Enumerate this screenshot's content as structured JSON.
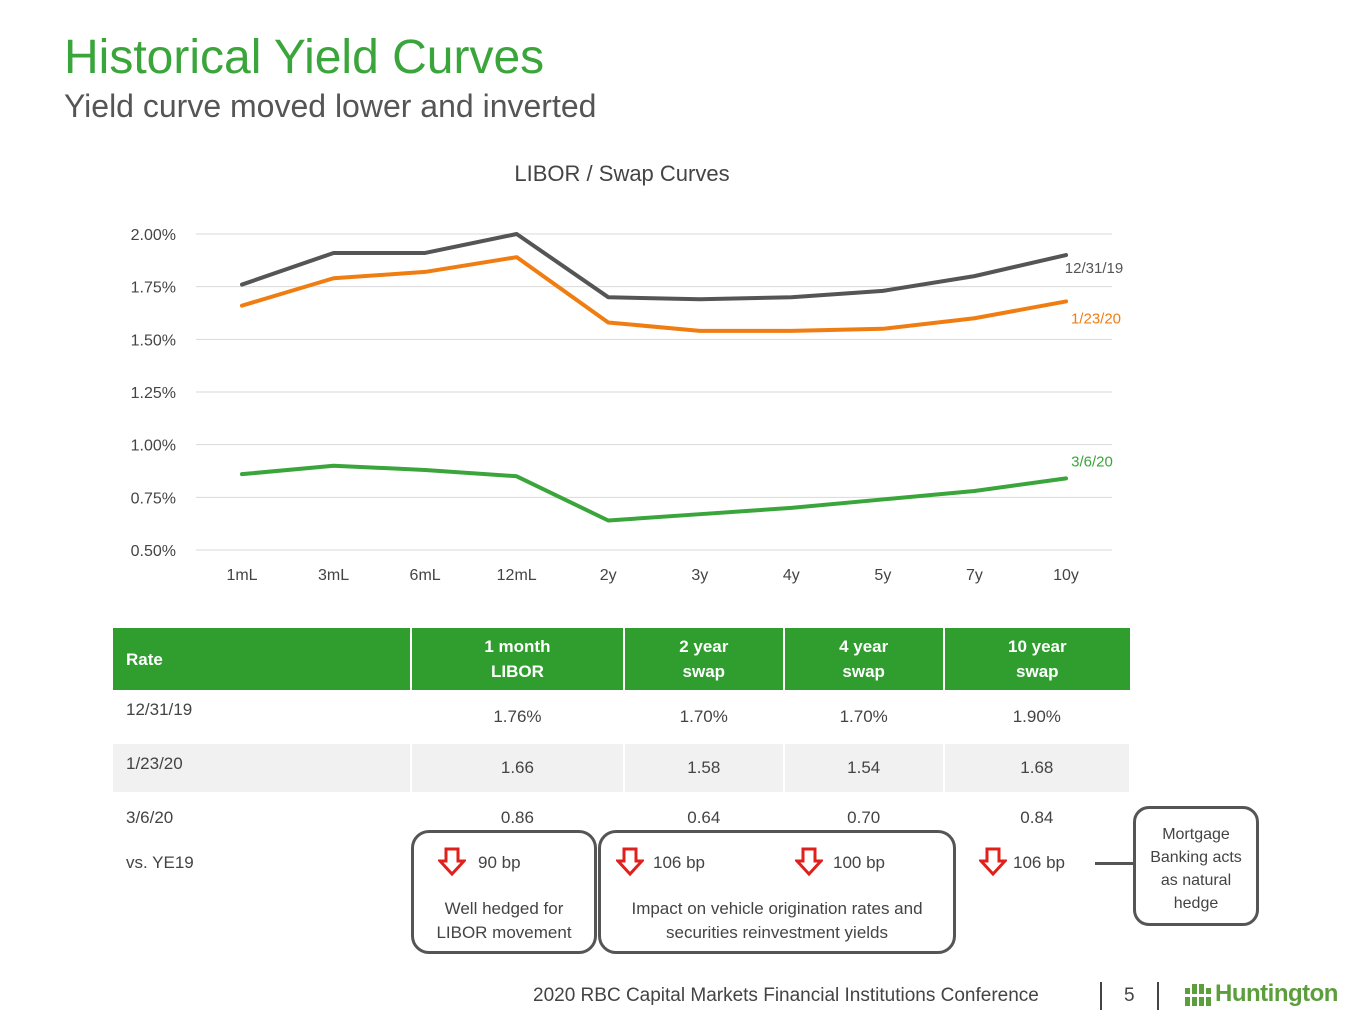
{
  "slide": {
    "title": "Historical Yield Curves",
    "subtitle": "Yield curve moved lower and inverted"
  },
  "chart_data": {
    "type": "line",
    "title": "LIBOR / Swap Curves",
    "categories": [
      "1mL",
      "3mL",
      "6mL",
      "12mL",
      "2y",
      "3y",
      "4y",
      "5y",
      "7y",
      "10y"
    ],
    "series": [
      {
        "name": "12/31/19",
        "color": "#555555",
        "values": [
          1.76,
          1.91,
          1.91,
          2.0,
          1.7,
          1.69,
          1.7,
          1.73,
          1.8,
          1.9
        ]
      },
      {
        "name": "1/23/20",
        "color": "#f07d12",
        "values": [
          1.66,
          1.79,
          1.82,
          1.89,
          1.58,
          1.54,
          1.54,
          1.55,
          1.6,
          1.68
        ]
      },
      {
        "name": "3/6/20",
        "color": "#3aa53a",
        "values": [
          0.86,
          0.9,
          0.88,
          0.85,
          0.64,
          0.67,
          0.7,
          0.74,
          0.78,
          0.84
        ]
      }
    ],
    "ylim": [
      0.5,
      2.0
    ],
    "yticks": [
      "2.00%",
      "1.75%",
      "1.50%",
      "1.25%",
      "1.00%",
      "0.75%",
      "0.50%"
    ],
    "ytick_values": [
      2.0,
      1.75,
      1.5,
      1.25,
      1.0,
      0.75,
      0.5
    ],
    "grid": true,
    "legend": "inline labels at right end of each line"
  },
  "table": {
    "header": {
      "rate": "Rate",
      "c1a": "1 month",
      "c1b": "LIBOR",
      "c2a": "2 year",
      "c2b": "swap",
      "c3a": "4 year",
      "c3b": "swap",
      "c4a": "10 year",
      "c4b": "swap"
    },
    "rows": [
      {
        "label": "12/31/19",
        "v1": "1.76%",
        "v2": "1.70%",
        "v3": "1.70%",
        "v4": "1.90%"
      },
      {
        "label": "1/23/20",
        "v1": "1.66",
        "v2": "1.58",
        "v3": "1.54",
        "v4": "1.68"
      },
      {
        "label": "3/6/20",
        "v1": "0.86",
        "v2": "0.64",
        "v3": "0.70",
        "v4": "0.84"
      }
    ],
    "change": {
      "label": "vs. YE19",
      "c1": "90 bp",
      "c2": "106 bp",
      "c3": "100 bp",
      "c4": "106 bp"
    }
  },
  "notes": {
    "libor": {
      "line1": "Well hedged for",
      "line2": "LIBOR movement"
    },
    "swap": {
      "line1": "Impact on vehicle origination rates and",
      "line2": "securities reinvestment yields"
    },
    "mortgage": {
      "line1": "Mortgage",
      "line2": "Banking acts",
      "line3": "as natural",
      "line4": "hedge"
    }
  },
  "footer": {
    "conference": "2020 RBC Capital Markets Financial Institutions Conference",
    "page": "5",
    "logo": "Huntington"
  },
  "colors": {
    "brand_green": "#3aa53a",
    "table_header": "#2f9e2f",
    "arrow_red": "#e0201b"
  }
}
